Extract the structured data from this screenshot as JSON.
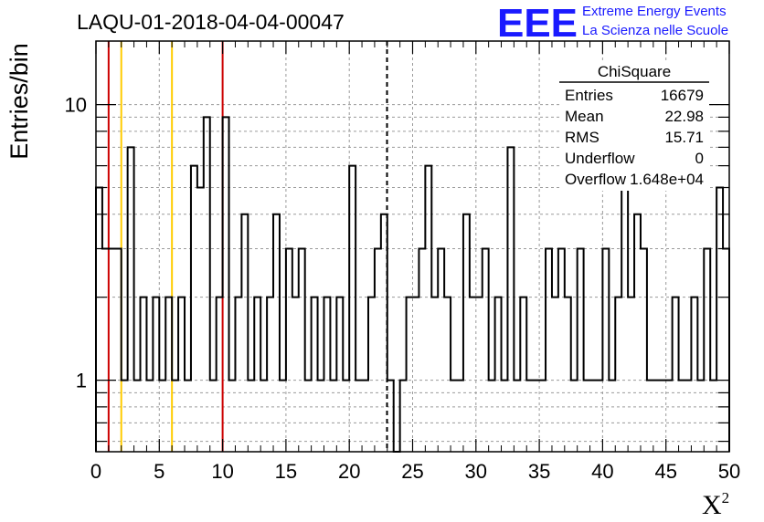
{
  "chart_data": {
    "type": "bar",
    "title": "LAQU-01-2018-04-04-00047",
    "xlabel": "X",
    "xlabel_superscript": "2",
    "ylabel": "Entries/bin",
    "yscale": "log",
    "xlim": [
      0,
      50
    ],
    "ylim": [
      0.55,
      17
    ],
    "grid": true,
    "bin_width": 0.5,
    "x_ticks": [
      "0",
      "5",
      "10",
      "15",
      "20",
      "25",
      "30",
      "35",
      "40",
      "45",
      "50"
    ],
    "y_ticks": [
      "1",
      "10"
    ],
    "values": [
      5,
      3,
      3,
      3,
      1,
      7,
      1,
      2,
      1,
      2,
      1,
      2,
      1,
      2,
      1,
      6,
      5,
      9,
      1,
      2,
      9,
      1,
      2,
      4,
      1,
      2,
      1,
      2,
      4,
      1,
      3,
      2,
      3,
      1,
      2,
      1,
      2,
      1,
      2,
      1,
      6,
      1,
      1,
      2,
      3,
      4,
      1,
      0,
      1,
      2,
      2,
      3,
      6,
      2,
      3,
      2,
      1,
      1,
      4,
      2,
      2,
      3,
      1,
      2,
      1,
      7,
      1,
      2,
      1,
      1,
      1,
      3,
      2,
      3,
      2,
      1,
      3,
      1,
      1,
      1,
      3,
      1,
      2,
      6,
      2,
      4,
      3,
      1,
      1,
      1,
      1,
      2,
      1,
      1,
      2,
      1,
      3,
      1,
      5,
      3
    ],
    "reference_lines": [
      {
        "x": 1,
        "color": "#cc0000",
        "style": "solid"
      },
      {
        "x": 2,
        "color": "#ffcc00",
        "style": "solid"
      },
      {
        "x": 6,
        "color": "#ffcc00",
        "style": "solid"
      },
      {
        "x": 10,
        "color": "#cc0000",
        "style": "solid"
      },
      {
        "x": 22.98,
        "color": "#000000",
        "style": "dashed"
      }
    ],
    "stats_box": {
      "title": "ChiSquare",
      "rows": [
        {
          "label": "Entries",
          "value": "16679"
        },
        {
          "label": "Mean",
          "value": "22.98"
        },
        {
          "label": "RMS",
          "value": "15.71"
        },
        {
          "label": "Underflow",
          "value": "0"
        },
        {
          "label": "Overflow",
          "value": "1.648e+04"
        }
      ]
    }
  },
  "logo": {
    "mark": "EEE",
    "line1": "Extreme Energy Events",
    "line2": "La Scienza nelle Scuole",
    "color": "#1a1aff"
  }
}
